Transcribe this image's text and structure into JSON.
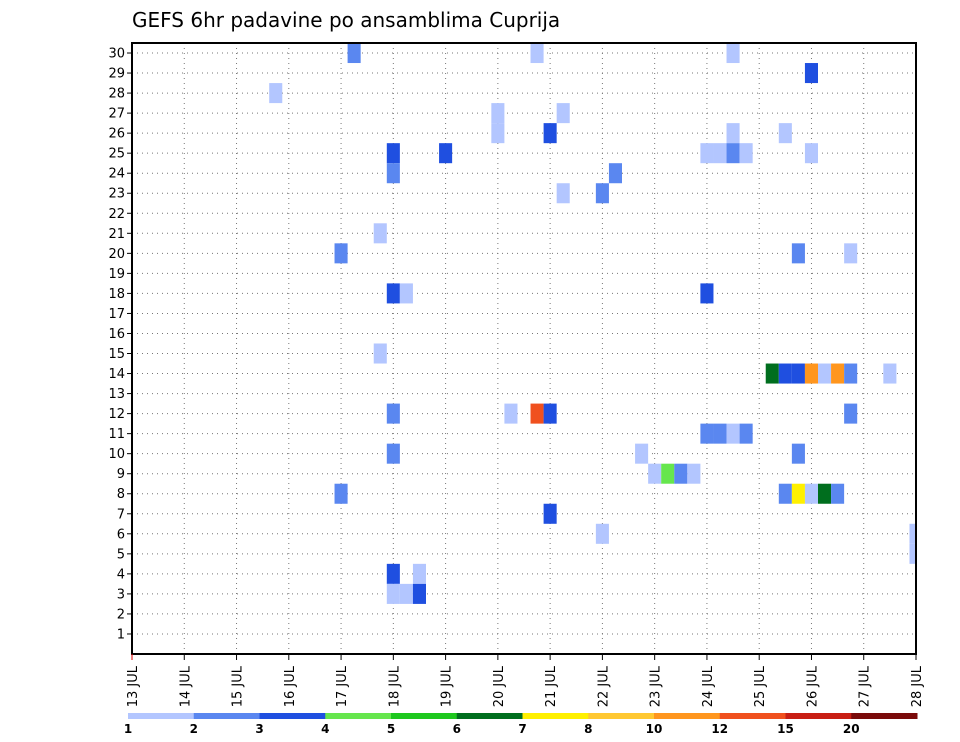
{
  "chart_data": {
    "type": "heatmap",
    "title": "GEFS 6hr padavine po ansamblima Cuprija",
    "x_ticks": [
      "13 JUL",
      "14 JUL",
      "15 JUL",
      "16 JUL",
      "17 JUL",
      "18 JUL",
      "19 JUL",
      "20 JUL",
      "21 JUL",
      "22 JUL",
      "23 JUL",
      "24 JUL",
      "25 JUL",
      "26 JUL",
      "27 JUL",
      "28 JUL"
    ],
    "x_range": [
      "13 JUL 00Z",
      "28 JUL 00Z"
    ],
    "y_ticks": [
      1,
      2,
      3,
      4,
      5,
      6,
      7,
      8,
      9,
      10,
      11,
      12,
      13,
      14,
      15,
      16,
      17,
      18,
      19,
      20,
      21,
      22,
      23,
      24,
      25,
      26,
      27,
      28,
      29,
      30
    ],
    "y_range": [
      0,
      30
    ],
    "grid": true,
    "legend_position": "bottom",
    "colorbar": {
      "labels": [
        "1",
        "2",
        "3",
        "4",
        "5",
        "6",
        "7",
        "8",
        "10",
        "12",
        "15",
        "20"
      ],
      "colors": [
        "#b3c6ff",
        "#5a87f0",
        "#1f4fe0",
        "#66e64d",
        "#1ec81e",
        "#006e1e",
        "#fff000",
        "#ffc832",
        "#ff961e",
        "#f0501e",
        "#c81e14",
        "#7a0a0a"
      ]
    },
    "cells_note": "each cell: day (0 = 13 JUL 00Z, step 0.25 = 6 hours), member (y), precipitation class index into colorbar.colors",
    "cells": [
      [
        4.25,
        30,
        1
      ],
      [
        7.75,
        30,
        0
      ],
      [
        11.5,
        30,
        0
      ],
      [
        13.0,
        29,
        2
      ],
      [
        2.75,
        28,
        0
      ],
      [
        7.0,
        27,
        0
      ],
      [
        8.25,
        27,
        0
      ],
      [
        7.0,
        26,
        0
      ],
      [
        8.0,
        26,
        2
      ],
      [
        11.5,
        26,
        0
      ],
      [
        12.5,
        26,
        0
      ],
      [
        5.0,
        25,
        2
      ],
      [
        6.0,
        25,
        2
      ],
      [
        11.0,
        25,
        0
      ],
      [
        11.25,
        25,
        0
      ],
      [
        11.5,
        25,
        1
      ],
      [
        11.75,
        25,
        0
      ],
      [
        13.0,
        25,
        0
      ],
      [
        5.0,
        24,
        1
      ],
      [
        9.25,
        24,
        1
      ],
      [
        8.25,
        23,
        0
      ],
      [
        9.0,
        23,
        1
      ],
      [
        4.75,
        21,
        0
      ],
      [
        4.0,
        20,
        1
      ],
      [
        12.75,
        20,
        1
      ],
      [
        13.75,
        20,
        0
      ],
      [
        5.0,
        18,
        2
      ],
      [
        5.25,
        18,
        0
      ],
      [
        11.0,
        18,
        2
      ],
      [
        4.75,
        15,
        0
      ],
      [
        12.25,
        14,
        5
      ],
      [
        12.5,
        14,
        2
      ],
      [
        12.75,
        14,
        2
      ],
      [
        13.0,
        14,
        8
      ],
      [
        13.25,
        14,
        0
      ],
      [
        13.5,
        14,
        8
      ],
      [
        13.75,
        14,
        1
      ],
      [
        14.5,
        14,
        0
      ],
      [
        5.0,
        12,
        1
      ],
      [
        7.25,
        12,
        0
      ],
      [
        7.75,
        12,
        9
      ],
      [
        8.0,
        12,
        2
      ],
      [
        13.75,
        12,
        1
      ],
      [
        11.0,
        11,
        1
      ],
      [
        11.25,
        11,
        1
      ],
      [
        11.5,
        11,
        0
      ],
      [
        11.75,
        11,
        1
      ],
      [
        5.0,
        10,
        1
      ],
      [
        9.75,
        10,
        0
      ],
      [
        12.75,
        10,
        1
      ],
      [
        10.0,
        9,
        0
      ],
      [
        10.25,
        9,
        3
      ],
      [
        10.5,
        9,
        1
      ],
      [
        10.75,
        9,
        0
      ],
      [
        4.0,
        8,
        1
      ],
      [
        12.5,
        8,
        1
      ],
      [
        12.75,
        8,
        6
      ],
      [
        13.0,
        8,
        0
      ],
      [
        13.25,
        8,
        5
      ],
      [
        13.5,
        8,
        1
      ],
      [
        8.0,
        7,
        2
      ],
      [
        9.0,
        6,
        0
      ],
      [
        15.0,
        6,
        0
      ],
      [
        15.0,
        5,
        0
      ],
      [
        5.0,
        4,
        2
      ],
      [
        5.5,
        4,
        0
      ],
      [
        5.0,
        3,
        0
      ],
      [
        5.25,
        3,
        0
      ],
      [
        5.5,
        3,
        2
      ]
    ]
  }
}
